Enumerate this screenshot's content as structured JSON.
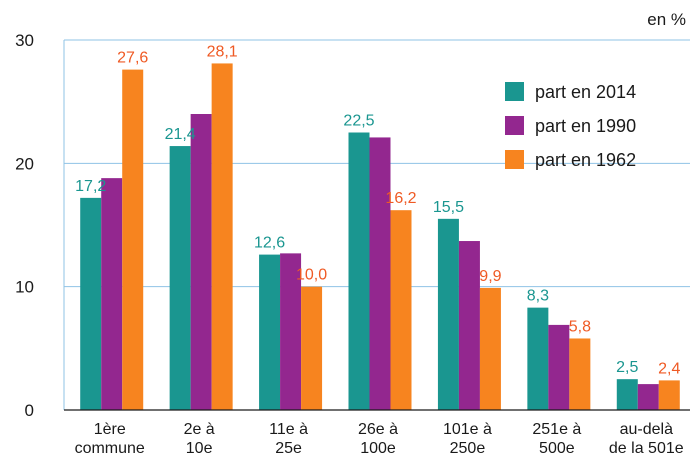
{
  "chart_data": {
    "type": "bar",
    "unit_label": "en %",
    "categories": [
      [
        "1ère",
        "commune"
      ],
      [
        "2e à",
        "10e"
      ],
      [
        "11e à",
        "25e"
      ],
      [
        "26e à",
        "100e"
      ],
      [
        "101e à",
        "250e"
      ],
      [
        "251e à",
        "500e"
      ],
      [
        "au-delà",
        "de la 501e"
      ]
    ],
    "series": [
      {
        "name": "part en 2014",
        "color": "#1a9690",
        "values": [
          17.2,
          21.4,
          12.6,
          22.5,
          15.5,
          8.3,
          2.5
        ],
        "labels": [
          "17,2",
          "21,4",
          "12,6",
          "22,5",
          "15,5",
          "8,3",
          "2,5"
        ]
      },
      {
        "name": "part en 1990",
        "color": "#93278f",
        "values": [
          18.8,
          24.0,
          12.7,
          22.1,
          13.7,
          6.9,
          2.1
        ],
        "labels": [
          null,
          null,
          null,
          null,
          null,
          null,
          null
        ]
      },
      {
        "name": "part en 1962",
        "color": "#f7841f",
        "values": [
          27.6,
          28.1,
          10.0,
          16.2,
          9.9,
          5.8,
          2.4
        ],
        "labels": [
          "27,6",
          "28,1",
          "10,0",
          "16,2",
          "9,9",
          "5,8",
          "2,4"
        ]
      }
    ],
    "label_colors": [
      "#1a9690",
      null,
      "#ef5a24"
    ],
    "ylim": [
      0,
      30
    ],
    "yticks": [
      0,
      10,
      20,
      30
    ],
    "grid": true,
    "legend_position": "top-right"
  }
}
